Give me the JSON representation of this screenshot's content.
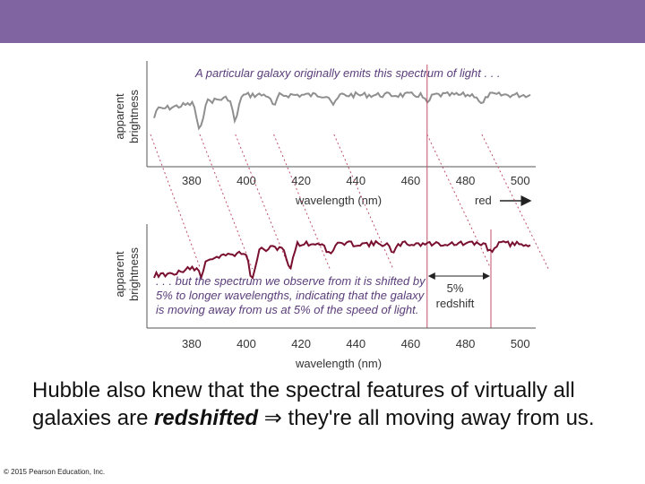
{
  "colors": {
    "header_bar": "#8064a2",
    "emitted_spectrum": "#8f8f8f",
    "observed_spectrum": "#7a1030",
    "guide_lines": "#c0506a",
    "caption_text": "#5a3d7a"
  },
  "diagram": {
    "top_panel": {
      "caption": "A particular galaxy originally emits this spectrum of light . . .",
      "ylabel_line1": "apparent",
      "ylabel_line2": "brightness",
      "xlabel": "wavelength (nm)",
      "ticks": [
        "380",
        "400",
        "420",
        "440",
        "460",
        "480",
        "500"
      ],
      "red_label": "red",
      "xlim": [
        365,
        505
      ]
    },
    "bottom_panel": {
      "caption_line1": ". . . but the spectrum we observe from it is shifted by",
      "caption_line2": "5% to longer wavelengths, indicating that the galaxy",
      "caption_line3": "is moving away from us at 5% of the speed of light.",
      "ylabel_line1": "apparent",
      "ylabel_line2": "brightness",
      "xlabel": "wavelength (nm)",
      "ticks": [
        "380",
        "400",
        "420",
        "440",
        "460",
        "480",
        "500"
      ],
      "shift_label_line1": "5%",
      "shift_label_line2": "redshift",
      "xlim": [
        365,
        505
      ]
    },
    "redshift_factor": 1.05,
    "line_wavelengths": [
      365,
      383,
      396,
      410,
      432,
      466,
      486
    ]
  },
  "body": {
    "text_before": "Hubble also knew that the spectral features of virtually all galaxies are ",
    "text_bold": "redshifted",
    "text_after": " ⇒ they're all moving away from us."
  },
  "footer": {
    "copyright": "© 2015 Pearson Education, Inc."
  }
}
